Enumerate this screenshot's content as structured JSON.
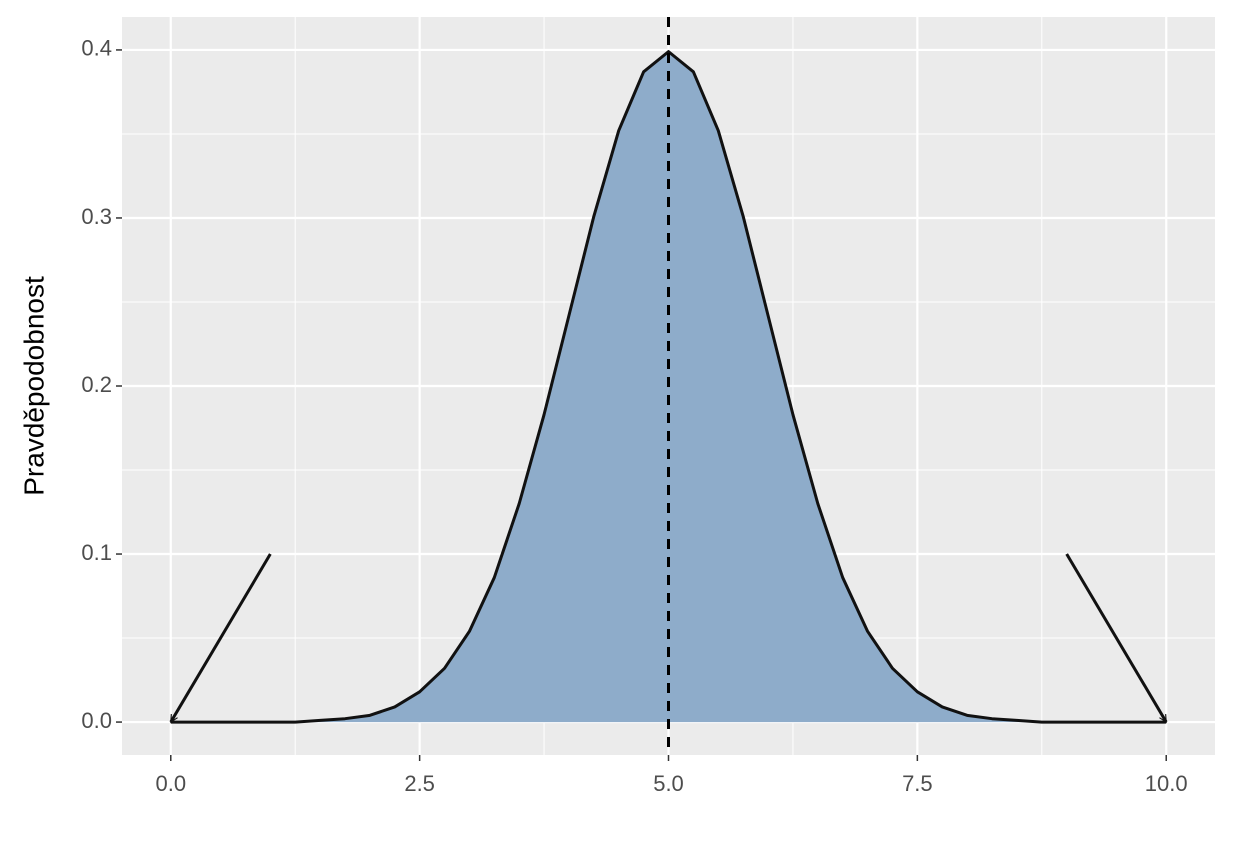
{
  "chart_data": {
    "type": "area",
    "y_label": "Pravděpodobnost",
    "x": [
      0,
      0.25,
      0.5,
      0.75,
      1,
      1.25,
      1.5,
      1.75,
      2,
      2.25,
      2.5,
      2.75,
      3,
      3.25,
      3.5,
      3.75,
      4,
      4.25,
      4.5,
      4.75,
      5,
      5.25,
      5.5,
      5.75,
      6,
      6.25,
      6.5,
      6.75,
      7,
      7.25,
      7.5,
      7.75,
      8,
      8.25,
      8.5,
      8.75,
      9,
      9.25,
      9.5,
      9.75,
      10
    ],
    "values": [
      0,
      0,
      0,
      0,
      0,
      0,
      0.001,
      0.002,
      0.004,
      0.009,
      0.018,
      0.032,
      0.054,
      0.086,
      0.13,
      0.183,
      0.242,
      0.301,
      0.352,
      0.387,
      0.399,
      0.387,
      0.352,
      0.301,
      0.242,
      0.183,
      0.13,
      0.086,
      0.054,
      0.032,
      0.018,
      0.009,
      0.004,
      0.002,
      0.001,
      0,
      0,
      0,
      0,
      0,
      0
    ],
    "color": "#8eacca",
    "line_color": "#111111",
    "vline": 5,
    "arrows": [
      {
        "x": [
          1,
          0
        ],
        "y": [
          0.1,
          0
        ]
      },
      {
        "x": [
          9,
          10
        ],
        "y": [
          0.1,
          0
        ]
      }
    ],
    "xlim": [
      -0.49,
      10.49
    ],
    "ylim": [
      -0.0196,
      0.4196
    ],
    "xticks": [
      {
        "value": 0,
        "label": "0.0"
      },
      2.5,
      {
        "value": 5,
        "label": "5.0"
      },
      7.5,
      {
        "value": 10,
        "label": "10.0"
      }
    ],
    "yticks": [
      {
        "value": 0,
        "label": "0.0"
      },
      0.1,
      0.2,
      0.3,
      0.4
    ],
    "grid": true
  }
}
